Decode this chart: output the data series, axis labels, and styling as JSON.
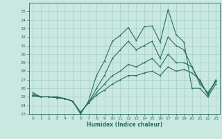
{
  "xlabel": "Humidex (Indice chaleur)",
  "x": [
    0,
    1,
    2,
    3,
    4,
    5,
    6,
    7,
    8,
    9,
    10,
    11,
    12,
    13,
    14,
    15,
    16,
    17,
    18,
    19,
    20,
    21,
    22,
    23
  ],
  "line1": [
    25.5,
    25.0,
    25.0,
    25.0,
    24.8,
    24.5,
    23.0,
    24.5,
    27.5,
    29.2,
    31.5,
    32.2,
    33.1,
    31.6,
    33.2,
    33.3,
    31.4,
    35.2,
    32.3,
    31.4,
    26.0,
    26.0,
    25.0,
    26.5
  ],
  "line2": [
    25.3,
    25.0,
    25.0,
    25.0,
    24.8,
    24.5,
    23.2,
    24.3,
    26.0,
    27.5,
    29.5,
    30.5,
    31.5,
    30.5,
    31.0,
    31.5,
    29.5,
    32.0,
    31.0,
    30.5,
    28.5,
    26.5,
    25.5,
    26.8
  ],
  "line3": [
    25.2,
    25.0,
    25.0,
    24.9,
    24.8,
    24.5,
    23.2,
    24.3,
    25.5,
    26.5,
    27.5,
    28.0,
    28.8,
    28.5,
    29.0,
    29.5,
    28.5,
    30.0,
    29.0,
    29.0,
    28.5,
    26.8,
    25.3,
    26.8
  ],
  "line4": [
    25.1,
    25.0,
    25.0,
    24.9,
    24.8,
    24.5,
    23.2,
    24.3,
    25.2,
    25.8,
    26.5,
    27.0,
    27.5,
    27.5,
    27.8,
    28.0,
    27.5,
    28.5,
    28.0,
    28.2,
    27.8,
    27.0,
    25.2,
    27.0
  ],
  "line_color": "#2a6e62",
  "bg_color": "#c8e8e0",
  "grid_color": "#a8cfc8",
  "ylim": [
    23,
    36
  ],
  "yticks": [
    23,
    24,
    25,
    26,
    27,
    28,
    29,
    30,
    31,
    32,
    33,
    34,
    35
  ],
  "xticks": [
    0,
    1,
    2,
    3,
    4,
    5,
    6,
    7,
    8,
    9,
    10,
    11,
    12,
    13,
    14,
    15,
    16,
    17,
    18,
    19,
    20,
    21,
    22,
    23
  ]
}
